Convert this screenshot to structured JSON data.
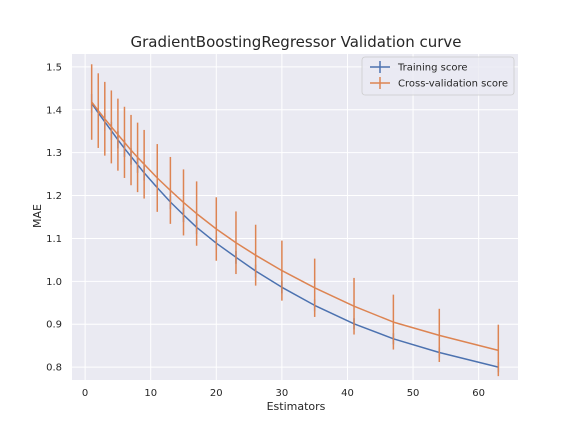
{
  "chart_data": {
    "type": "line",
    "title": "GradientBoostingRegressor Validation curve",
    "xlabel": "Estimators",
    "ylabel": "MAE",
    "xlim": [
      -2,
      66
    ],
    "ylim": [
      0.77,
      1.53
    ],
    "xticks": [
      0,
      10,
      20,
      30,
      40,
      50,
      60
    ],
    "yticks": [
      0.8,
      0.9,
      1.0,
      1.1,
      1.2,
      1.3,
      1.4,
      1.5
    ],
    "ytick_labels": [
      "0.8",
      "0.9",
      "1.0",
      "1.1",
      "1.2",
      "1.3",
      "1.4",
      "1.5"
    ],
    "grid": true,
    "legend_position": "top-right",
    "background": "#eaeaf2",
    "x": [
      1,
      2,
      3,
      4,
      5,
      6,
      7,
      8,
      9,
      11,
      13,
      15,
      17,
      20,
      23,
      26,
      30,
      35,
      41,
      47,
      54,
      63
    ],
    "series": [
      {
        "name": "Training score",
        "color": "#4c72b0",
        "values": [
          1.415,
          1.393,
          1.372,
          1.351,
          1.33,
          1.31,
          1.291,
          1.272,
          1.253,
          1.218,
          1.185,
          1.155,
          1.126,
          1.089,
          1.056,
          1.024,
          0.986,
          0.944,
          0.901,
          0.866,
          0.834,
          0.8
        ],
        "errors": [
          0.022,
          0.022,
          0.021,
          0.021,
          0.02,
          0.02,
          0.019,
          0.019,
          0.018,
          0.018,
          0.017,
          0.017,
          0.016,
          0.016,
          0.015,
          0.015,
          0.014,
          0.014,
          0.013,
          0.013,
          0.012,
          0.012
        ]
      },
      {
        "name": "Cross-validation score",
        "color": "#dd8452",
        "values": [
          1.418,
          1.398,
          1.379,
          1.36,
          1.342,
          1.324,
          1.306,
          1.289,
          1.273,
          1.241,
          1.212,
          1.184,
          1.158,
          1.122,
          1.09,
          1.061,
          1.025,
          0.985,
          0.942,
          0.905,
          0.874,
          0.839
        ],
        "errors": [
          0.088,
          0.087,
          0.086,
          0.085,
          0.084,
          0.083,
          0.082,
          0.081,
          0.08,
          0.079,
          0.078,
          0.077,
          0.075,
          0.074,
          0.073,
          0.071,
          0.07,
          0.068,
          0.066,
          0.064,
          0.062,
          0.06
        ]
      }
    ]
  }
}
